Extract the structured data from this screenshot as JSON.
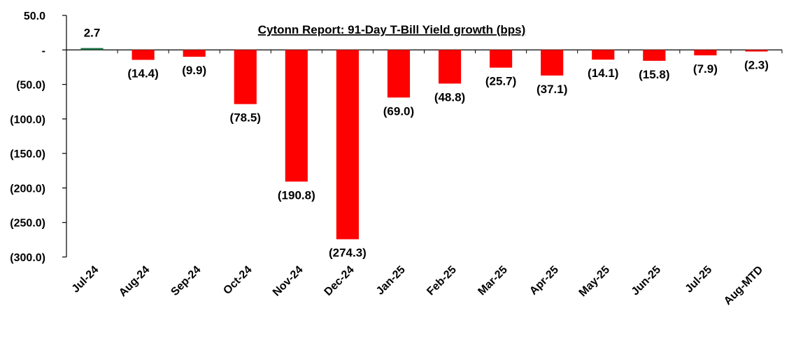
{
  "chart_data": {
    "type": "bar",
    "title": "Cytonn Report:  91-Day T-Bill Yield growth (bps)",
    "xlabel": "",
    "ylabel": "",
    "ylim": [
      -300,
      50
    ],
    "y_ticks": [
      50,
      0,
      -50,
      -100,
      -150,
      -200,
      -250,
      -300
    ],
    "y_tick_labels": [
      "50.0",
      "-",
      "(50.0)",
      "(100.0)",
      "(150.0)",
      "(200.0)",
      "(250.0)",
      "(300.0)"
    ],
    "categories": [
      "Jul-24",
      "Aug-24",
      "Sep-24",
      "Oct-24",
      "Nov-24",
      "Dec-24",
      "Jan-25",
      "Feb-25",
      "Mar-25",
      "Apr-25",
      "May-25",
      "Jun-25",
      "Jul-25",
      "Aug-MTD"
    ],
    "values": [
      2.7,
      -14.4,
      -9.9,
      -78.5,
      -190.8,
      -274.3,
      -69.0,
      -48.8,
      -25.7,
      -37.1,
      -14.1,
      -15.8,
      -7.9,
      -2.3
    ],
    "data_labels": [
      "2.7",
      "(14.4)",
      "(9.9)",
      "(78.5)",
      "(190.8)",
      "(274.3)",
      "(69.0)",
      "(48.8)",
      "(25.7)",
      "(37.1)",
      "(14.1)",
      "(15.8)",
      "(7.9)",
      "(2.3)"
    ],
    "grid": false,
    "legend": "none",
    "colors": {
      "positive": "#1e7145",
      "negative": "#ff0000",
      "axis": "#000000"
    }
  }
}
